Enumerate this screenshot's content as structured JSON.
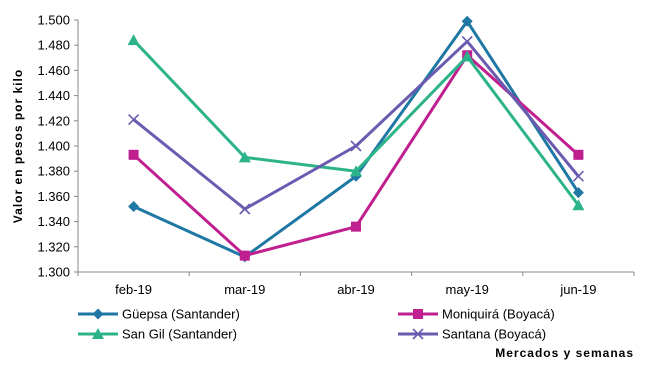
{
  "chart_data": {
    "type": "line",
    "categories": [
      "feb-19",
      "mar-19",
      "abr-19",
      "may-19",
      "jun-19"
    ],
    "xlabel": "Mercados y semanas",
    "ylabel": "Valor en pesos por kilo",
    "ylim": [
      1300,
      1500
    ],
    "yticks": [
      1300,
      1320,
      1340,
      1360,
      1380,
      1400,
      1420,
      1440,
      1460,
      1480,
      1500
    ],
    "ytick_labels": [
      "1.300",
      "1.320",
      "1.340",
      "1.360",
      "1.380",
      "1.400",
      "1.420",
      "1.440",
      "1.460",
      "1.480",
      "1.500"
    ],
    "grid": false,
    "legend": "bottom",
    "series": [
      {
        "name": "Güepsa (Santander)",
        "values": [
          1352,
          1312,
          1376,
          1499,
          1363
        ],
        "color": "#1f77a4",
        "marker": "diamond"
      },
      {
        "name": "Moniquirá (Boyacá)",
        "values": [
          1393,
          1313,
          1336,
          1472,
          1393
        ],
        "color": "#c0208f",
        "marker": "square"
      },
      {
        "name": "San Gil (Santander)",
        "values": [
          1484,
          1391,
          1380,
          1471,
          1353
        ],
        "color": "#2db38a",
        "marker": "triangle"
      },
      {
        "name": "Santana (Boyacá)",
        "values": [
          1421,
          1350,
          1400,
          1483,
          1376
        ],
        "color": "#6a5bb0",
        "marker": "x"
      }
    ]
  }
}
